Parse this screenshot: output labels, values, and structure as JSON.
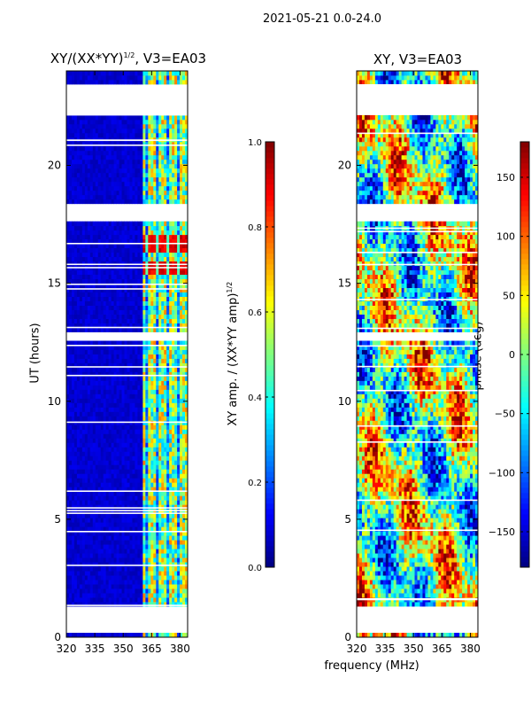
{
  "suptitle": "2021-05-21 0.0-24.0",
  "xlabel": "frequency (MHz)",
  "panels": [
    {
      "title": "XY/(XX*YY)",
      "title_sup": "1/2",
      "title_tail": ", V3=EA03"
    },
    {
      "title": "XY, V3=EA03"
    }
  ],
  "colorbars": [
    {
      "label": "XY amp. / (XX*YY amp)",
      "label_sup": "1/2"
    },
    {
      "label": "phase (deg)"
    }
  ],
  "colors": {
    "jet": [
      "#00007f",
      "#0000ff",
      "#007fff",
      "#00ffff",
      "#7fff7f",
      "#ffff00",
      "#ff7f00",
      "#ff0000",
      "#7f0000"
    ],
    "bg": "#ffffff"
  },
  "chart_data": [
    {
      "type": "heatmap",
      "title": "XY/(XX*YY)^1/2, V3=EA03",
      "xlabel": "frequency (MHz)",
      "ylabel": "UT (hours)",
      "xlim": [
        320,
        384
      ],
      "ylim": [
        0,
        24
      ],
      "xticks": [
        320,
        335,
        350,
        365,
        380
      ],
      "yticks": [
        0,
        5,
        10,
        15,
        20
      ],
      "colorbar": {
        "label": "XY amp. / (XX*YY amp)^1/2",
        "range": [
          0.0,
          1.0
        ],
        "ticks": [
          "0.0",
          "0.2",
          "0.4",
          "0.6",
          "0.8",
          "1.0"
        ]
      },
      "low_region": {
        "freq_range": [
          320,
          361
        ],
        "value": 0.05
      },
      "high_region": {
        "freq_range": [
          361,
          384
        ],
        "value_range": [
          0.3,
          0.95
        ]
      },
      "flagged_hours": [
        [
          0.1,
          1.4
        ],
        [
          12.5,
          13.0
        ],
        [
          17.6,
          18.4
        ],
        [
          22.2,
          23.4
        ]
      ]
    },
    {
      "type": "heatmap",
      "title": "XY, V3=EA03",
      "xlabel": "frequency (MHz)",
      "ylabel": "",
      "xlim": [
        320,
        384
      ],
      "ylim": [
        0,
        24
      ],
      "xticks": [
        320,
        335,
        350,
        365,
        380
      ],
      "yticks": [
        0,
        5,
        10,
        15,
        20
      ],
      "colorbar": {
        "label": "phase (deg)",
        "range": [
          -180,
          180
        ],
        "ticks": [
          "−150",
          "−100",
          "−50",
          "0",
          "50",
          "100",
          "150"
        ]
      },
      "phase_range_deg": [
        -180,
        180
      ],
      "flagged_hours": [
        [
          0.1,
          1.4
        ],
        [
          12.5,
          13.0
        ],
        [
          17.6,
          18.4
        ],
        [
          22.2,
          23.4
        ]
      ]
    }
  ]
}
